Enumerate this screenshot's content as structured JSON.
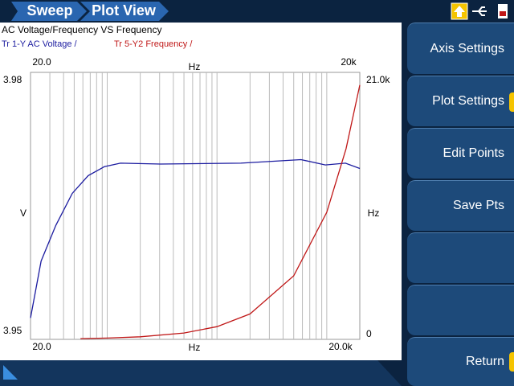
{
  "header": {
    "tabs": [
      "Sweep",
      "Plot View"
    ]
  },
  "chart": {
    "type": "line",
    "title": "AC Voltage/Frequency VS Frequency",
    "xscale": "log",
    "xlim": [
      20,
      20000
    ],
    "top_x_label": "Hz",
    "x_label": "Hz",
    "y_label": "V",
    "y2_label": "Hz",
    "top_xticks": [
      {
        "value": 20,
        "label": "20.0"
      },
      {
        "value": 20000,
        "label": "20k"
      }
    ],
    "xticks": [
      {
        "value": 20,
        "label": "20.0"
      },
      {
        "value": 20000,
        "label": "20.0k"
      }
    ],
    "x_grid": [
      30,
      40,
      50,
      60,
      70,
      80,
      90,
      100,
      200,
      300,
      400,
      500,
      600,
      700,
      800,
      900,
      1000,
      2000,
      3000,
      4000,
      5000,
      6000,
      7000,
      8000,
      9000,
      10000
    ],
    "ylim": [
      3.95,
      3.98
    ],
    "yticks": [
      3.95,
      3.98
    ],
    "y2lim": [
      0,
      21000
    ],
    "y2ticks": [
      0,
      {
        "value": 21000,
        "label": "21.0k"
      }
    ],
    "series": [
      {
        "name": "Tr 1-Y AC Voltage /",
        "color": "#1c1ca0",
        "axis": "y",
        "x": [
          20,
          25,
          34,
          48,
          67,
          94,
          132,
          306,
          1650,
          5830,
          9700,
          14800,
          20000
        ],
        "values": [
          3.9524,
          3.9588,
          3.9628,
          3.9664,
          3.9684,
          3.9694,
          3.9698,
          3.9697,
          3.9698,
          3.9702,
          3.9696,
          3.9698,
          3.9692
        ]
      },
      {
        "name": "Tr 5-Y2 Frequency /",
        "color": "#c01818",
        "axis": "y2",
        "x": [
          57,
          100,
          200,
          500,
          1000,
          2000,
          5000,
          10000,
          15000,
          20000
        ],
        "values": [
          57,
          100,
          200,
          500,
          1000,
          2000,
          5000,
          10000,
          15000,
          20000
        ]
      }
    ]
  },
  "buttons": [
    "Axis Settings",
    "Plot Settings",
    "Edit Points",
    "Save Pts",
    "Return"
  ]
}
